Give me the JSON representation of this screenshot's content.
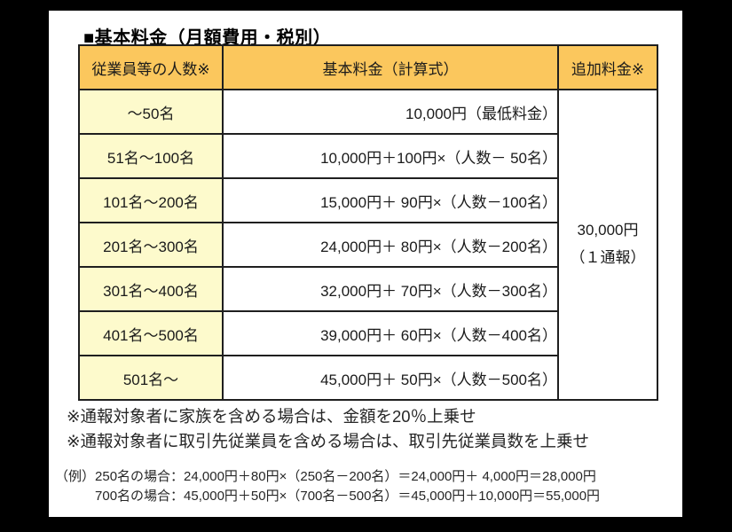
{
  "colors": {
    "header_bg": "#FBC75D",
    "range_bg": "#FDFACC",
    "border": "#1f1f1f"
  },
  "title": "■基本料金（月額費用・税別）",
  "table": {
    "headers": {
      "employees": "従業員等の人数※",
      "base_fee": "基本料金（計算式）",
      "additional_fee": "追加料金※"
    },
    "rows": [
      {
        "range": "～50名",
        "formula": "10,000円（最低料金）"
      },
      {
        "range": "51名～100名",
        "formula": "10,000円＋100円×（人数－ 50名）"
      },
      {
        "range": "101名～200名",
        "formula": "15,000円＋ 90円×（人数－100名）"
      },
      {
        "range": "201名～300名",
        "formula": "24,000円＋ 80円×（人数－200名）"
      },
      {
        "range": "301名～400名",
        "formula": "32,000円＋ 70円×（人数－300名）"
      },
      {
        "range": "401名～500名",
        "formula": "39,000円＋ 60円×（人数－400名）"
      },
      {
        "range": "501名～",
        "formula": "45,000円＋ 50円×（人数－500名）"
      }
    ],
    "additional_fee": {
      "line1": "30,000円",
      "line2": "（１通報）"
    }
  },
  "notes": {
    "note1": "※通報対象者に家族を含める場合は、金額を20％上乗せ",
    "note2": "※通報対象者に取引先従業員を含める場合は、取引先従業員数を上乗せ"
  },
  "examples": {
    "prefix": "（例）",
    "line1": "250名の場合：24,000円＋80円×（250名－200名）＝24,000円＋ 4,000円＝28,000円",
    "line2": "700名の場合：45,000円＋50円×（700名－500名）＝45,000円＋10,000円＝55,000円"
  }
}
